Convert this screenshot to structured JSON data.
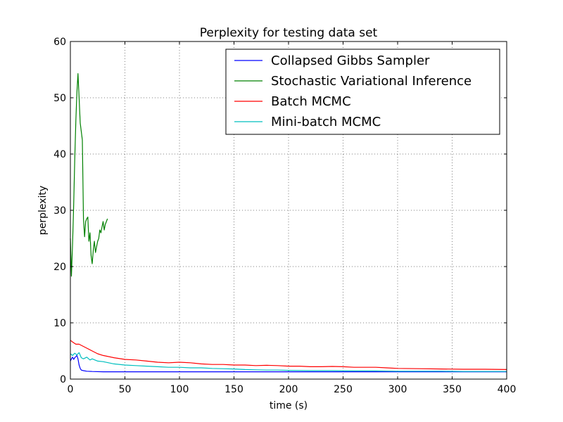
{
  "chart_data": {
    "type": "line",
    "title": "Perplexity for testing data set",
    "xlabel": "time (s)",
    "ylabel": "perplexity",
    "xlim": [
      0,
      400
    ],
    "ylim": [
      0,
      60
    ],
    "xticks": [
      0,
      50,
      100,
      150,
      200,
      250,
      300,
      350,
      400
    ],
    "yticks": [
      0,
      10,
      20,
      30,
      40,
      50,
      60
    ],
    "grid": true,
    "legend_position": "top-right",
    "series": [
      {
        "name": "Collapsed Gibbs Sampler",
        "color": "#0000ff",
        "x": [
          0,
          1,
          2,
          3,
          4,
          5,
          6,
          7,
          8,
          9,
          10,
          12,
          15,
          20,
          30,
          40,
          50,
          60,
          80,
          100,
          120,
          150,
          180,
          200,
          230,
          260,
          300,
          330,
          360,
          400
        ],
        "y": [
          3.2,
          3.6,
          3.9,
          3.5,
          3.8,
          4.0,
          4.2,
          3.6,
          2.5,
          1.9,
          1.6,
          1.5,
          1.4,
          1.35,
          1.3,
          1.3,
          1.3,
          1.3,
          1.3,
          1.3,
          1.3,
          1.3,
          1.3,
          1.3,
          1.3,
          1.3,
          1.3,
          1.3,
          1.3,
          1.3
        ]
      },
      {
        "name": "Stochastic Variational Inference",
        "color": "#008000",
        "x": [
          0,
          1,
          2,
          3,
          4,
          5,
          6,
          7,
          8,
          9,
          10,
          11,
          12,
          13,
          14,
          15,
          16,
          17,
          18,
          19,
          20,
          21,
          22,
          23,
          24,
          25,
          26,
          27,
          28,
          29,
          30,
          31,
          32,
          33,
          34
        ],
        "y": [
          25.0,
          18.3,
          24.0,
          31.0,
          39.0,
          46.0,
          51.0,
          54.3,
          50.0,
          45.5,
          44.0,
          42.5,
          28.5,
          25.3,
          28.0,
          28.5,
          28.8,
          24.5,
          26.0,
          22.0,
          20.5,
          23.0,
          24.5,
          22.5,
          23.5,
          24.5,
          25.0,
          26.5,
          26.0,
          27.0,
          28.0,
          26.5,
          27.5,
          28.0,
          28.5
        ]
      },
      {
        "name": "Batch MCMC",
        "color": "#ff0000",
        "x": [
          0,
          2,
          5,
          8,
          10,
          15,
          20,
          25,
          30,
          40,
          50,
          60,
          70,
          80,
          90,
          100,
          110,
          120,
          130,
          140,
          150,
          160,
          170,
          180,
          190,
          200,
          210,
          220,
          230,
          240,
          250,
          260,
          270,
          280,
          290,
          300,
          320,
          340,
          360,
          380,
          400
        ],
        "y": [
          6.9,
          6.6,
          6.2,
          6.2,
          6.0,
          5.5,
          5.0,
          4.5,
          4.2,
          3.8,
          3.5,
          3.4,
          3.2,
          3.0,
          2.9,
          3.0,
          2.9,
          2.7,
          2.6,
          2.6,
          2.5,
          2.5,
          2.4,
          2.45,
          2.4,
          2.3,
          2.3,
          2.2,
          2.2,
          2.25,
          2.2,
          2.1,
          2.1,
          2.1,
          2.0,
          1.9,
          1.85,
          1.8,
          1.75,
          1.75,
          1.7
        ]
      },
      {
        "name": "Mini-batch MCMC",
        "color": "#00bfbf",
        "x": [
          0,
          2,
          4,
          6,
          8,
          10,
          12,
          15,
          18,
          20,
          25,
          30,
          35,
          40,
          50,
          60,
          70,
          80,
          90,
          100,
          110,
          120,
          130,
          140,
          150,
          160,
          170,
          180,
          190,
          200,
          220,
          240,
          260,
          280,
          300,
          320,
          340,
          360,
          380,
          400
        ],
        "y": [
          4.5,
          4.2,
          4.6,
          4.3,
          4.7,
          3.8,
          3.6,
          3.9,
          3.4,
          3.6,
          3.2,
          3.1,
          2.9,
          2.7,
          2.5,
          2.4,
          2.3,
          2.2,
          2.1,
          2.1,
          2.0,
          2.0,
          1.9,
          1.85,
          1.8,
          1.7,
          1.65,
          1.6,
          1.6,
          1.55,
          1.5,
          1.5,
          1.45,
          1.45,
          1.4,
          1.4,
          1.4,
          1.35,
          1.35,
          1.35
        ]
      }
    ]
  }
}
